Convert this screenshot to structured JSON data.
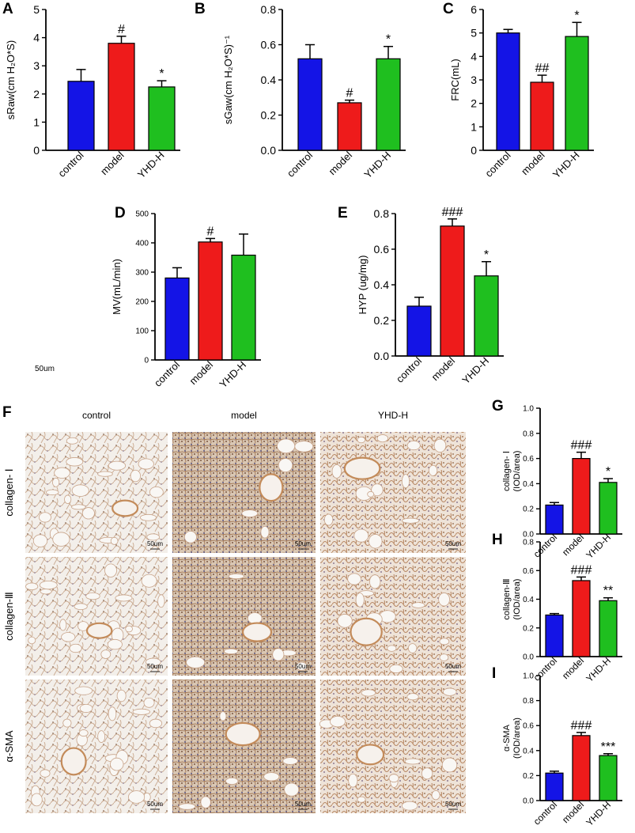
{
  "colors": {
    "control": "#1414e6",
    "model": "#ee1b1b",
    "yhd": "#1fbf1f",
    "axis": "#000000"
  },
  "chart_data": [
    {
      "id": "A",
      "type": "bar",
      "panel_label": "A",
      "ylabel": "sRaw(cm H₂O*S)",
      "ylim": [
        0,
        5
      ],
      "yticks": [
        "0",
        "1",
        "2",
        "3",
        "4",
        "5"
      ],
      "categories": [
        "control",
        "model",
        "YHD-H"
      ],
      "values": [
        2.45,
        3.8,
        2.25
      ],
      "errors": [
        0.42,
        0.25,
        0.22
      ],
      "annotations": [
        "",
        "#",
        "*"
      ]
    },
    {
      "id": "B",
      "type": "bar",
      "panel_label": "B",
      "ylabel": "sGaw(cm H₂O*S)⁻¹",
      "ylim": [
        0,
        0.8
      ],
      "yticks": [
        "0.0",
        "0.2",
        "0.4",
        "0.6",
        "0.8"
      ],
      "categories": [
        "control",
        "model",
        "YHD-H"
      ],
      "values": [
        0.52,
        0.27,
        0.52
      ],
      "errors": [
        0.08,
        0.015,
        0.07
      ],
      "annotations": [
        "",
        "#",
        "*"
      ]
    },
    {
      "id": "C",
      "type": "bar",
      "panel_label": "C",
      "ylabel": "FRC(mL)",
      "ylim": [
        0,
        6
      ],
      "yticks": [
        "0",
        "1",
        "2",
        "3",
        "4",
        "5",
        "6"
      ],
      "categories": [
        "control",
        "model",
        "YHD-H"
      ],
      "values": [
        5.0,
        2.9,
        4.85
      ],
      "errors": [
        0.15,
        0.3,
        0.6
      ],
      "annotations": [
        "",
        "##",
        "*"
      ]
    },
    {
      "id": "D",
      "type": "bar",
      "panel_label": "D",
      "ylabel": "MV(mL/min)",
      "ylim": [
        0,
        500
      ],
      "yticks": [
        "0",
        "100",
        "200",
        "300",
        "400",
        "500"
      ],
      "categories": [
        "control",
        "model",
        "YHD-H"
      ],
      "values": [
        280,
        403,
        358
      ],
      "errors": [
        35,
        12,
        72
      ],
      "annotations": [
        "",
        "#",
        ""
      ]
    },
    {
      "id": "E",
      "type": "bar",
      "panel_label": "E",
      "ylabel": "HYP (ug/mg)",
      "ylim": [
        0,
        0.8
      ],
      "yticks": [
        "0.0",
        "0.2",
        "0.4",
        "0.6",
        "0.8"
      ],
      "categories": [
        "control",
        "model",
        "YHD-H"
      ],
      "values": [
        0.28,
        0.73,
        0.45
      ],
      "errors": [
        0.05,
        0.04,
        0.08
      ],
      "annotations": [
        "",
        "###",
        "*"
      ]
    },
    {
      "id": "G",
      "type": "bar",
      "panel_label": "G",
      "ylabel": "collagen- Ⅰ",
      "ylabel2": "(IOD/area)",
      "ylim": [
        0,
        1.0
      ],
      "yticks": [
        "0.0",
        "0.2",
        "0.4",
        "0.6",
        "0.8",
        "1.0"
      ],
      "categories": [
        "control",
        "model",
        "YHD-H"
      ],
      "values": [
        0.23,
        0.6,
        0.41
      ],
      "errors": [
        0.02,
        0.05,
        0.03
      ],
      "annotations": [
        "",
        "###",
        "*"
      ]
    },
    {
      "id": "H",
      "type": "bar",
      "panel_label": "H",
      "ylabel": "collagen-Ⅲ",
      "ylabel2": "(IOD/area)",
      "ylim": [
        0,
        0.8
      ],
      "yticks": [
        "0.0",
        "0.2",
        "0.4",
        "0.6",
        "0.8"
      ],
      "categories": [
        "control",
        "model",
        "YHD-H"
      ],
      "values": [
        0.29,
        0.53,
        0.39
      ],
      "errors": [
        0.01,
        0.025,
        0.02
      ],
      "annotations": [
        "",
        "###",
        "**"
      ]
    },
    {
      "id": "I",
      "type": "bar",
      "panel_label": "I",
      "ylabel": "α-SMA",
      "ylabel2": "(IOD/area)",
      "ylim": [
        0,
        1.0
      ],
      "yticks": [
        "0.0",
        "0.2",
        "0.4",
        "0.6",
        "0.8",
        "1.0"
      ],
      "categories": [
        "control",
        "model",
        "YHD-H"
      ],
      "values": [
        0.22,
        0.52,
        0.36
      ],
      "errors": [
        0.015,
        0.025,
        0.015
      ],
      "annotations": [
        "",
        "###",
        "***"
      ]
    }
  ],
  "stray_label": "50um",
  "micrographs": {
    "panel_label": "F",
    "columns": [
      "control",
      "model",
      "YHD-H"
    ],
    "rows": [
      "collagen- Ⅰ",
      "collagen-Ⅲ",
      "α-SMA"
    ],
    "scale_bar_label": "50um",
    "fibrosis_level": [
      [
        0.1,
        0.85,
        0.35
      ],
      [
        0.1,
        0.8,
        0.45
      ],
      [
        0.15,
        0.75,
        0.45
      ]
    ]
  }
}
